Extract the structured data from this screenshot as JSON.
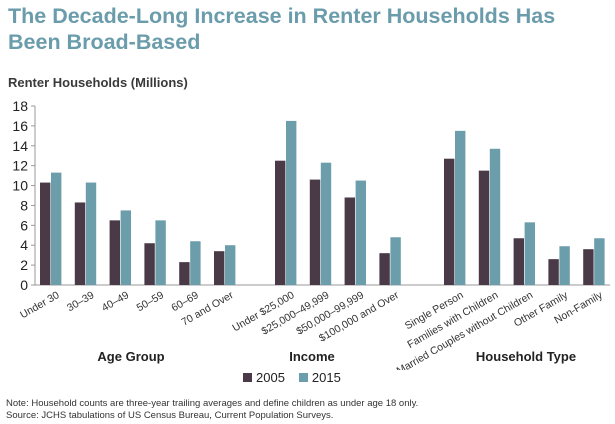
{
  "title": "The Decade-Long Increase in Renter Households Has Been Broad-Based",
  "colors": {
    "2005": "#4a3a48",
    "2015": "#6b9dab",
    "title": "#6a9cab",
    "axis": "#999999"
  },
  "chart_data": {
    "type": "bar",
    "ylabel": "Renter Households (Millions)",
    "ylim": [
      0,
      18
    ],
    "yticks": [
      "0",
      "2",
      "4",
      "6",
      "8",
      "10",
      "12",
      "14",
      "16",
      "18"
    ],
    "legend": [
      "2005",
      "2015"
    ],
    "groups": [
      {
        "label": "Age Group",
        "categories": [
          "Under 30",
          "30–39",
          "40–49",
          "50–59",
          "60–69",
          "70 and Over"
        ],
        "series": [
          {
            "name": "2005",
            "values": [
              10.3,
              8.3,
              6.5,
              4.2,
              2.3,
              3.4
            ]
          },
          {
            "name": "2015",
            "values": [
              11.3,
              10.3,
              7.5,
              6.5,
              4.4,
              4.0
            ]
          }
        ]
      },
      {
        "label": "Income",
        "categories": [
          "Under $25,000",
          "$25,000–49,999",
          "$50,000–99,999",
          "$100,000 and Over"
        ],
        "series": [
          {
            "name": "2005",
            "values": [
              12.5,
              10.6,
              8.8,
              3.2
            ]
          },
          {
            "name": "2015",
            "values": [
              16.5,
              12.3,
              10.5,
              4.8
            ]
          }
        ]
      },
      {
        "label": "Household Type",
        "categories": [
          "Single Person",
          "Families with Children",
          "Married Couples without Children",
          "Other Family",
          "Non-Family"
        ],
        "series": [
          {
            "name": "2005",
            "values": [
              12.7,
              11.5,
              4.7,
              2.6,
              3.6
            ]
          },
          {
            "name": "2015",
            "values": [
              15.5,
              13.7,
              6.3,
              3.9,
              4.7
            ]
          }
        ]
      }
    ]
  },
  "notes": [
    "Note: Household counts are three-year trailing averages and define children as under age 18 only.",
    "Source: JCHS tabulations of US Census Bureau, Current Population Surveys."
  ]
}
